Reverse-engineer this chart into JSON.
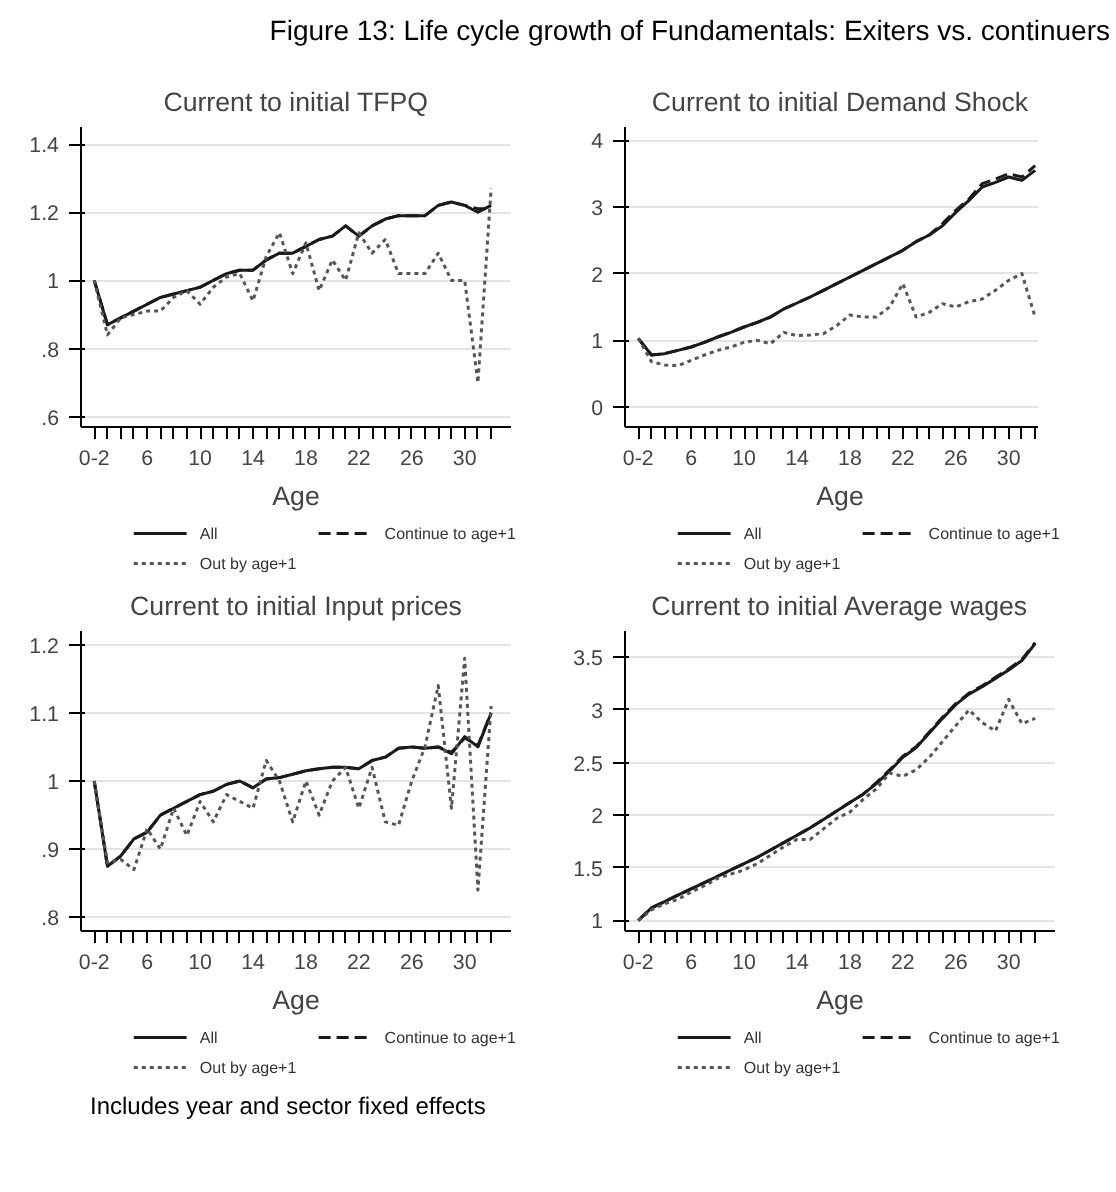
{
  "chart_data": [
    {
      "type": "other",
      "title": "Figure 13: Life cycle growth of Fundamentals: Exiters vs. continuers",
      "annotations": [
        "Includes year and sector fixed effects"
      ]
    },
    {
      "type": "line",
      "title": "Current to initial TFPQ",
      "xlabel": "Age",
      "x": [
        2,
        3,
        4,
        5,
        6,
        7,
        8,
        9,
        10,
        11,
        12,
        13,
        14,
        15,
        16,
        17,
        18,
        19,
        20,
        21,
        22,
        23,
        24,
        25,
        26,
        27,
        28,
        29,
        30,
        31,
        32
      ],
      "xlim": [
        1,
        33.5
      ],
      "xticks": [
        {
          "value": 2,
          "label": "0-2"
        },
        {
          "value": 3,
          "label": null
        },
        {
          "value": 4,
          "label": null
        },
        {
          "value": 5,
          "label": null
        },
        6,
        {
          "value": 7,
          "label": null
        },
        {
          "value": 8,
          "label": null
        },
        {
          "value": 9,
          "label": null
        },
        10,
        {
          "value": 11,
          "label": null
        },
        {
          "value": 12,
          "label": null
        },
        {
          "value": 13,
          "label": null
        },
        14,
        {
          "value": 15,
          "label": null
        },
        {
          "value": 16,
          "label": null
        },
        {
          "value": 17,
          "label": null
        },
        18,
        {
          "value": 19,
          "label": null
        },
        {
          "value": 20,
          "label": null
        },
        {
          "value": 21,
          "label": null
        },
        22,
        {
          "value": 23,
          "label": null
        },
        {
          "value": 24,
          "label": null
        },
        {
          "value": 25,
          "label": null
        },
        26,
        {
          "value": 27,
          "label": null
        },
        {
          "value": 28,
          "label": null
        },
        {
          "value": 29,
          "label": null
        },
        30,
        {
          "value": 31,
          "label": null
        },
        {
          "value": 32,
          "label": null
        }
      ],
      "ylim": [
        0.57,
        1.45
      ],
      "yticks": [
        {
          "value": 0.6,
          "label": ".6"
        },
        {
          "value": 0.8,
          "label": ".8"
        },
        1,
        1.2,
        1.4
      ],
      "grid": "y",
      "legend": "bottom",
      "series": [
        {
          "name": "All",
          "color": "#1a1a1a",
          "line_style": "solid",
          "values": [
            1.0,
            0.87,
            0.89,
            0.91,
            0.93,
            0.95,
            0.96,
            0.97,
            0.98,
            1.0,
            1.02,
            1.03,
            1.03,
            1.06,
            1.08,
            1.08,
            1.1,
            1.12,
            1.13,
            1.16,
            1.13,
            1.16,
            1.18,
            1.19,
            1.19,
            1.19,
            1.22,
            1.23,
            1.22,
            1.2,
            1.22
          ]
        },
        {
          "name": "Continue to age+1",
          "color": "#1a1a1a",
          "line_style": "dashed",
          "values": [
            1.0,
            0.87,
            0.89,
            0.91,
            0.93,
            0.95,
            0.96,
            0.97,
            0.98,
            1.0,
            1.02,
            1.03,
            1.03,
            1.06,
            1.08,
            1.08,
            1.1,
            1.12,
            1.13,
            1.16,
            1.13,
            1.16,
            1.18,
            1.19,
            1.19,
            1.19,
            1.22,
            1.23,
            1.22,
            1.21,
            1.21
          ]
        },
        {
          "name": "Out by age+1",
          "color": "#555555",
          "line_style": "dotted",
          "values": [
            1.0,
            0.84,
            0.89,
            0.9,
            0.91,
            0.91,
            0.95,
            0.97,
            0.93,
            0.98,
            1.01,
            1.02,
            0.94,
            1.07,
            1.14,
            1.02,
            1.11,
            0.97,
            1.06,
            1.0,
            1.14,
            1.08,
            1.12,
            1.02,
            1.02,
            1.02,
            1.08,
            1.0,
            1.0,
            0.7,
            1.27
          ]
        }
      ]
    },
    {
      "type": "line",
      "title": "Current to initial Demand Shock",
      "xlabel": "Age",
      "x": [
        2,
        3,
        4,
        5,
        6,
        7,
        8,
        9,
        10,
        11,
        12,
        13,
        14,
        15,
        16,
        17,
        18,
        19,
        20,
        21,
        22,
        23,
        24,
        25,
        26,
        27,
        28,
        29,
        30,
        31,
        32
      ],
      "xlim": [
        1,
        33.5
      ],
      "xticks": [
        {
          "value": 2,
          "label": "0-2"
        },
        {
          "value": 3,
          "label": null
        },
        {
          "value": 4,
          "label": null
        },
        {
          "value": 5,
          "label": null
        },
        6,
        {
          "value": 7,
          "label": null
        },
        {
          "value": 8,
          "label": null
        },
        {
          "value": 9,
          "label": null
        },
        10,
        {
          "value": 11,
          "label": null
        },
        {
          "value": 12,
          "label": null
        },
        {
          "value": 13,
          "label": null
        },
        14,
        {
          "value": 15,
          "label": null
        },
        {
          "value": 16,
          "label": null
        },
        {
          "value": 17,
          "label": null
        },
        18,
        {
          "value": 19,
          "label": null
        },
        {
          "value": 20,
          "label": null
        },
        {
          "value": 21,
          "label": null
        },
        22,
        {
          "value": 23,
          "label": null
        },
        {
          "value": 24,
          "label": null
        },
        {
          "value": 25,
          "label": null
        },
        26,
        {
          "value": 27,
          "label": null
        },
        {
          "value": 28,
          "label": null
        },
        {
          "value": 29,
          "label": null
        },
        30,
        {
          "value": 31,
          "label": null
        },
        {
          "value": 32,
          "label": null
        }
      ],
      "ylim": [
        -0.3,
        4.2
      ],
      "yticks": [
        0,
        1,
        2,
        3,
        4
      ],
      "grid": "y",
      "legend": "bottom",
      "series": [
        {
          "name": "All",
          "color": "#1a1a1a",
          "line_style": "solid",
          "values": [
            1.03,
            0.78,
            0.8,
            0.85,
            0.9,
            0.97,
            1.05,
            1.12,
            1.2,
            1.27,
            1.35,
            1.47,
            1.56,
            1.65,
            1.75,
            1.85,
            1.95,
            2.05,
            2.15,
            2.25,
            2.35,
            2.48,
            2.58,
            2.72,
            2.92,
            3.1,
            3.3,
            3.37,
            3.45,
            3.4,
            3.55
          ]
        },
        {
          "name": "Continue to age+1",
          "color": "#1a1a1a",
          "line_style": "dashed",
          "values": [
            1.03,
            0.78,
            0.8,
            0.85,
            0.9,
            0.97,
            1.05,
            1.12,
            1.2,
            1.27,
            1.35,
            1.47,
            1.56,
            1.65,
            1.75,
            1.85,
            1.95,
            2.05,
            2.15,
            2.25,
            2.35,
            2.48,
            2.58,
            2.75,
            2.95,
            3.12,
            3.35,
            3.42,
            3.5,
            3.45,
            3.62
          ]
        },
        {
          "name": "Out by age+1",
          "color": "#555555",
          "line_style": "dotted",
          "values": [
            1.03,
            0.68,
            0.63,
            0.62,
            0.7,
            0.78,
            0.85,
            0.9,
            0.97,
            1.0,
            0.95,
            1.12,
            1.07,
            1.08,
            1.1,
            1.22,
            1.38,
            1.35,
            1.35,
            1.5,
            1.85,
            1.35,
            1.42,
            1.55,
            1.5,
            1.58,
            1.62,
            1.75,
            1.9,
            2.0,
            1.35
          ]
        }
      ]
    },
    {
      "type": "line",
      "title": "Current to initial Input prices",
      "xlabel": "Age",
      "x": [
        2,
        3,
        4,
        5,
        6,
        7,
        8,
        9,
        10,
        11,
        12,
        13,
        14,
        15,
        16,
        17,
        18,
        19,
        20,
        21,
        22,
        23,
        24,
        25,
        26,
        27,
        28,
        29,
        30,
        31,
        32
      ],
      "xlim": [
        1,
        33.5
      ],
      "xticks": [
        {
          "value": 2,
          "label": "0-2"
        },
        {
          "value": 3,
          "label": null
        },
        {
          "value": 4,
          "label": null
        },
        {
          "value": 5,
          "label": null
        },
        6,
        {
          "value": 7,
          "label": null
        },
        {
          "value": 8,
          "label": null
        },
        {
          "value": 9,
          "label": null
        },
        10,
        {
          "value": 11,
          "label": null
        },
        {
          "value": 12,
          "label": null
        },
        {
          "value": 13,
          "label": null
        },
        14,
        {
          "value": 15,
          "label": null
        },
        {
          "value": 16,
          "label": null
        },
        {
          "value": 17,
          "label": null
        },
        18,
        {
          "value": 19,
          "label": null
        },
        {
          "value": 20,
          "label": null
        },
        {
          "value": 21,
          "label": null
        },
        22,
        {
          "value": 23,
          "label": null
        },
        {
          "value": 24,
          "label": null
        },
        {
          "value": 25,
          "label": null
        },
        26,
        {
          "value": 27,
          "label": null
        },
        {
          "value": 28,
          "label": null
        },
        {
          "value": 29,
          "label": null
        },
        30,
        {
          "value": 31,
          "label": null
        },
        {
          "value": 32,
          "label": null
        }
      ],
      "ylim": [
        0.78,
        1.22
      ],
      "yticks": [
        {
          "value": 0.8,
          "label": ".8"
        },
        {
          "value": 0.9,
          "label": ".9"
        },
        1,
        1.1,
        1.2
      ],
      "grid": "y",
      "legend": "bottom",
      "series": [
        {
          "name": "All",
          "color": "#1a1a1a",
          "line_style": "solid",
          "values": [
            1.0,
            0.875,
            0.89,
            0.915,
            0.925,
            0.95,
            0.96,
            0.97,
            0.98,
            0.985,
            0.995,
            1.0,
            0.99,
            1.003,
            1.005,
            1.01,
            1.015,
            1.018,
            1.02,
            1.02,
            1.018,
            1.03,
            1.035,
            1.048,
            1.05,
            1.048,
            1.05,
            1.04,
            1.065,
            1.05,
            1.1
          ]
        },
        {
          "name": "Continue to age+1",
          "color": "#1a1a1a",
          "line_style": "dashed",
          "values": [
            1.0,
            0.875,
            0.89,
            0.915,
            0.925,
            0.95,
            0.96,
            0.97,
            0.98,
            0.985,
            0.995,
            1.0,
            0.99,
            1.003,
            1.005,
            1.01,
            1.015,
            1.018,
            1.02,
            1.02,
            1.018,
            1.03,
            1.035,
            1.048,
            1.05,
            1.048,
            1.05,
            1.042,
            1.063,
            1.052,
            1.1
          ]
        },
        {
          "name": "Out by age+1",
          "color": "#555555",
          "line_style": "dotted",
          "values": [
            1.0,
            0.88,
            0.885,
            0.87,
            0.93,
            0.9,
            0.96,
            0.92,
            0.97,
            0.94,
            0.98,
            0.97,
            0.96,
            1.03,
            1.0,
            0.94,
            1.0,
            0.95,
            1.0,
            1.02,
            0.96,
            1.02,
            0.94,
            0.935,
            1.0,
            1.05,
            1.14,
            0.96,
            1.18,
            0.84,
            1.11
          ]
        }
      ]
    },
    {
      "type": "line",
      "title": "Current to initial Average wages",
      "xlabel": "Age",
      "x": [
        2,
        3,
        4,
        5,
        6,
        7,
        8,
        9,
        10,
        11,
        12,
        13,
        14,
        15,
        16,
        17,
        18,
        19,
        20,
        21,
        22,
        23,
        24,
        25,
        26,
        27,
        28,
        29,
        30,
        31,
        32
      ],
      "xlim": [
        1,
        33.5
      ],
      "xticks": [
        {
          "value": 2,
          "label": "0-2"
        },
        {
          "value": 3,
          "label": null
        },
        {
          "value": 4,
          "label": null
        },
        {
          "value": 5,
          "label": null
        },
        6,
        {
          "value": 7,
          "label": null
        },
        {
          "value": 8,
          "label": null
        },
        {
          "value": 9,
          "label": null
        },
        10,
        {
          "value": 11,
          "label": null
        },
        {
          "value": 12,
          "label": null
        },
        {
          "value": 13,
          "label": null
        },
        14,
        {
          "value": 15,
          "label": null
        },
        {
          "value": 16,
          "label": null
        },
        {
          "value": 17,
          "label": null
        },
        18,
        {
          "value": 19,
          "label": null
        },
        {
          "value": 20,
          "label": null
        },
        {
          "value": 21,
          "label": null
        },
        22,
        {
          "value": 23,
          "label": null
        },
        {
          "value": 24,
          "label": null
        },
        {
          "value": 25,
          "label": null
        },
        26,
        {
          "value": 27,
          "label": null
        },
        {
          "value": 28,
          "label": null
        },
        {
          "value": 29,
          "label": null
        },
        30,
        {
          "value": 31,
          "label": null
        },
        {
          "value": 32,
          "label": null
        }
      ],
      "ylim": [
        0.9,
        3.75
      ],
      "yticks": [
        1,
        1.5,
        2,
        2.5,
        3,
        3.5
      ],
      "grid": "y",
      "legend": "bottom",
      "series": [
        {
          "name": "All",
          "color": "#1a1a1a",
          "line_style": "solid",
          "values": [
            1.0,
            1.12,
            1.18,
            1.24,
            1.3,
            1.36,
            1.42,
            1.48,
            1.54,
            1.6,
            1.67,
            1.74,
            1.81,
            1.88,
            1.96,
            2.04,
            2.12,
            2.2,
            2.3,
            2.42,
            2.55,
            2.64,
            2.78,
            2.92,
            3.05,
            3.15,
            3.22,
            3.3,
            3.38,
            3.47,
            3.63
          ]
        },
        {
          "name": "Continue to age+1",
          "color": "#1a1a1a",
          "line_style": "dashed",
          "values": [
            1.0,
            1.12,
            1.18,
            1.24,
            1.3,
            1.36,
            1.42,
            1.48,
            1.54,
            1.6,
            1.67,
            1.74,
            1.81,
            1.88,
            1.96,
            2.04,
            2.12,
            2.2,
            2.31,
            2.43,
            2.56,
            2.65,
            2.79,
            2.93,
            3.06,
            3.16,
            3.23,
            3.31,
            3.39,
            3.48,
            3.64
          ]
        },
        {
          "name": "Out by age+1",
          "color": "#555555",
          "line_style": "dotted",
          "values": [
            1.0,
            1.1,
            1.16,
            1.2,
            1.27,
            1.33,
            1.4,
            1.44,
            1.48,
            1.54,
            1.62,
            1.7,
            1.77,
            1.77,
            1.87,
            1.97,
            2.03,
            2.15,
            2.25,
            2.4,
            2.37,
            2.43,
            2.55,
            2.7,
            2.85,
            3.0,
            2.88,
            2.8,
            3.1,
            2.87,
            2.92
          ]
        }
      ]
    }
  ]
}
